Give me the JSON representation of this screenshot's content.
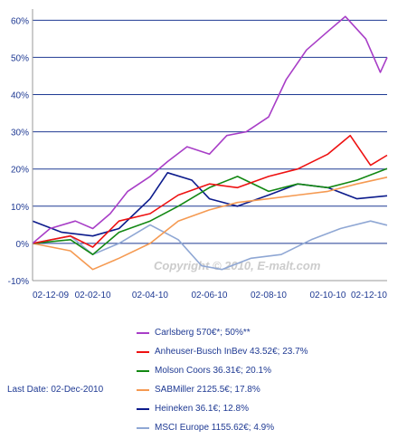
{
  "chart_data": {
    "type": "line",
    "ylim": [
      -10,
      63
    ],
    "yticks": [
      -10,
      0,
      10,
      20,
      30,
      40,
      50,
      60
    ],
    "ytick_labels": [
      "-10%",
      "0%",
      "10%",
      "20%",
      "30%",
      "40%",
      "50%",
      "60%"
    ],
    "x_range": [
      "2009-12-02",
      "2010-12-02"
    ],
    "xtick_labels": [
      "02-12-09",
      "02-02-10",
      "02-04-10",
      "02-06-10",
      "02-08-10",
      "02-10-10",
      "02-12-10"
    ],
    "xticks": [
      "2009-12-02",
      "2010-02-02",
      "2010-04-02",
      "2010-06-02",
      "2010-08-02",
      "2010-10-02",
      "2010-12-02"
    ],
    "grid": "horizontal",
    "watermark": "Copyright © 2010, E-malt.com",
    "series": [
      {
        "name": "Carlsberg",
        "label": "Carlsberg  570€*; 50%**",
        "color": "#a83ec7",
        "x": [
          "2009-12-02",
          "2009-12-20",
          "2010-01-15",
          "2010-02-02",
          "2010-02-20",
          "2010-03-10",
          "2010-04-02",
          "2010-04-20",
          "2010-05-10",
          "2010-06-02",
          "2010-06-20",
          "2010-07-10",
          "2010-08-02",
          "2010-08-20",
          "2010-09-10",
          "2010-10-02",
          "2010-10-20",
          "2010-11-10",
          "2010-11-25",
          "2010-12-02"
        ],
        "y": [
          0,
          4,
          6,
          4,
          8,
          14,
          18,
          22,
          26,
          24,
          29,
          30,
          34,
          44,
          52,
          57,
          61,
          55,
          46,
          50
        ]
      },
      {
        "name": "Anheuser-Busch InBev",
        "label": "Anheuser-Busch InBev  43.52€; 23.7%",
        "color": "#ee1111",
        "x": [
          "2009-12-02",
          "2010-01-10",
          "2010-02-02",
          "2010-03-01",
          "2010-04-02",
          "2010-05-01",
          "2010-06-02",
          "2010-07-01",
          "2010-08-02",
          "2010-09-01",
          "2010-10-02",
          "2010-10-25",
          "2010-11-15",
          "2010-12-02"
        ],
        "y": [
          0,
          2,
          -1,
          6,
          8,
          13,
          16,
          15,
          18,
          20,
          24,
          29,
          21,
          23.7
        ]
      },
      {
        "name": "Molson Coors",
        "label": "Molson Coors  36.31€; 20.1%",
        "color": "#138813",
        "x": [
          "2009-12-02",
          "2010-01-10",
          "2010-02-02",
          "2010-03-01",
          "2010-04-02",
          "2010-05-01",
          "2010-06-02",
          "2010-07-01",
          "2010-08-02",
          "2010-09-01",
          "2010-10-02",
          "2010-11-01",
          "2010-12-02"
        ],
        "y": [
          0,
          1,
          -3,
          3,
          6,
          10,
          15,
          18,
          14,
          16,
          15,
          17,
          20.1
        ]
      },
      {
        "name": "SABMiller",
        "label": "SABMiller  2125.5€; 17.8%",
        "color": "#f59a52",
        "x": [
          "2009-12-02",
          "2010-01-10",
          "2010-02-02",
          "2010-03-01",
          "2010-04-02",
          "2010-05-01",
          "2010-06-02",
          "2010-07-01",
          "2010-08-02",
          "2010-09-01",
          "2010-10-02",
          "2010-11-01",
          "2010-12-02"
        ],
        "y": [
          0,
          -2,
          -7,
          -4,
          0,
          6,
          9,
          11,
          12,
          13,
          14,
          16,
          17.8
        ]
      },
      {
        "name": "Heineken",
        "label": "Heineken  36.1€; 12.8%",
        "color": "#0c1b8c",
        "x": [
          "2009-12-02",
          "2010-01-01",
          "2010-02-02",
          "2010-03-01",
          "2010-04-02",
          "2010-04-20",
          "2010-05-15",
          "2010-06-02",
          "2010-07-01",
          "2010-08-02",
          "2010-09-01",
          "2010-10-02",
          "2010-11-01",
          "2010-12-02"
        ],
        "y": [
          6,
          3,
          2,
          4,
          12,
          19,
          17,
          12,
          10,
          13,
          16,
          15,
          12,
          12.8
        ]
      },
      {
        "name": "MSCI Europe",
        "label": "MSCI Europe  1155.62€; 4.9%",
        "color": "#8fa7d4",
        "x": [
          "2009-12-02",
          "2010-01-10",
          "2010-02-02",
          "2010-03-01",
          "2010-04-02",
          "2010-05-01",
          "2010-05-25",
          "2010-06-15",
          "2010-07-15",
          "2010-08-15",
          "2010-09-15",
          "2010-10-15",
          "2010-11-15",
          "2010-12-02"
        ],
        "y": [
          0,
          2,
          -3,
          0,
          5,
          1,
          -6,
          -7,
          -4,
          -3,
          1,
          4,
          6,
          4.9
        ]
      }
    ]
  },
  "last_date": "Last Date: 02-Dec-2010"
}
